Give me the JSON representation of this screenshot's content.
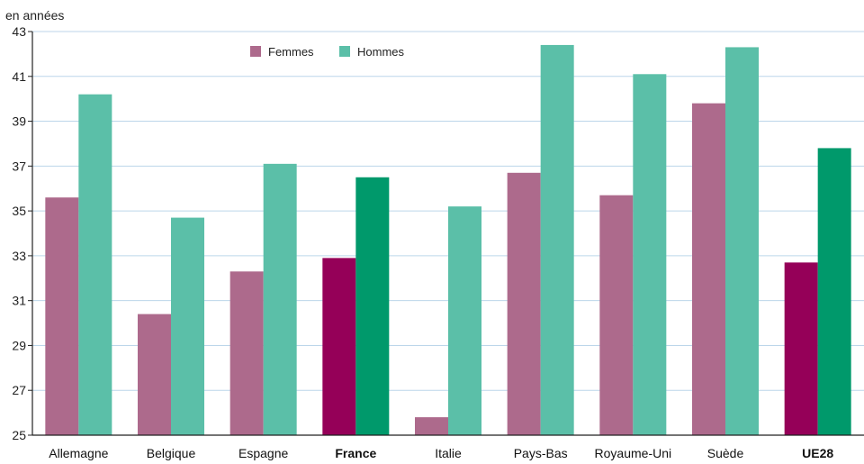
{
  "chart_data": {
    "type": "bar",
    "unit_label": "en années",
    "categories": [
      "Allemagne",
      "Belgique",
      "Espagne",
      "France",
      "Italie",
      "Pays-Bas",
      "Royaume-Uni",
      "Suède",
      "UE28"
    ],
    "highlighted": [
      "France",
      "UE28"
    ],
    "series": [
      {
        "name": "Femmes",
        "color": "#ad6a8c",
        "highlight_color": "#950058",
        "values": [
          35.6,
          30.4,
          32.3,
          32.9,
          25.8,
          36.7,
          35.7,
          39.8,
          32.7
        ]
      },
      {
        "name": "Hommes",
        "color": "#5bbfa8",
        "highlight_color": "#00996b",
        "values": [
          40.2,
          34.7,
          37.1,
          36.5,
          35.2,
          42.4,
          41.1,
          42.3,
          37.8
        ]
      }
    ],
    "ylim": [
      25,
      43
    ],
    "yticks": [
      25,
      27,
      29,
      31,
      33,
      35,
      37,
      39,
      41,
      43
    ],
    "grid": true,
    "legend_position": "top-center"
  }
}
